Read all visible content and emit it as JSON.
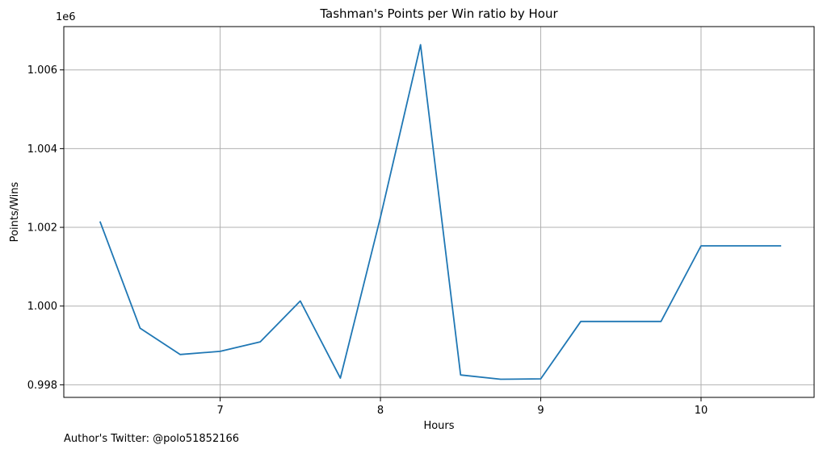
{
  "chart_data": {
    "type": "line",
    "title": "Tashman's Points per Win ratio by Hour",
    "xlabel": "Hours",
    "ylabel": "Points/Wins",
    "y_offset_text": "1e6",
    "xlim": [
      6.0245,
      10.7055
    ],
    "ylim": [
      997680,
      1007100
    ],
    "x_ticks": [
      7,
      8,
      9,
      10
    ],
    "x_tick_labels": [
      "7",
      "8",
      "9",
      "10"
    ],
    "y_ticks": [
      998000,
      1000000,
      1002000,
      1004000,
      1006000
    ],
    "y_tick_labels": [
      "0.998",
      "1.000",
      "1.002",
      "1.004",
      "1.006"
    ],
    "grid": true,
    "series": [
      {
        "color": "#1f77b4",
        "x": [
          6.25,
          6.5,
          6.75,
          7.0,
          7.25,
          7.5,
          7.75,
          8.0,
          8.25,
          8.5,
          8.75,
          9.0,
          9.25,
          9.5,
          9.75,
          10.0,
          10.25,
          10.5
        ],
        "y": [
          1002150,
          999440,
          998770,
          998850,
          999090,
          1000130,
          998170,
          1002260,
          1006640,
          998250,
          998140,
          998150,
          999610,
          999610,
          999610,
          1001530,
          1001530,
          1001530
        ]
      }
    ]
  },
  "footnote": "Author's Twitter: @polo51852166"
}
